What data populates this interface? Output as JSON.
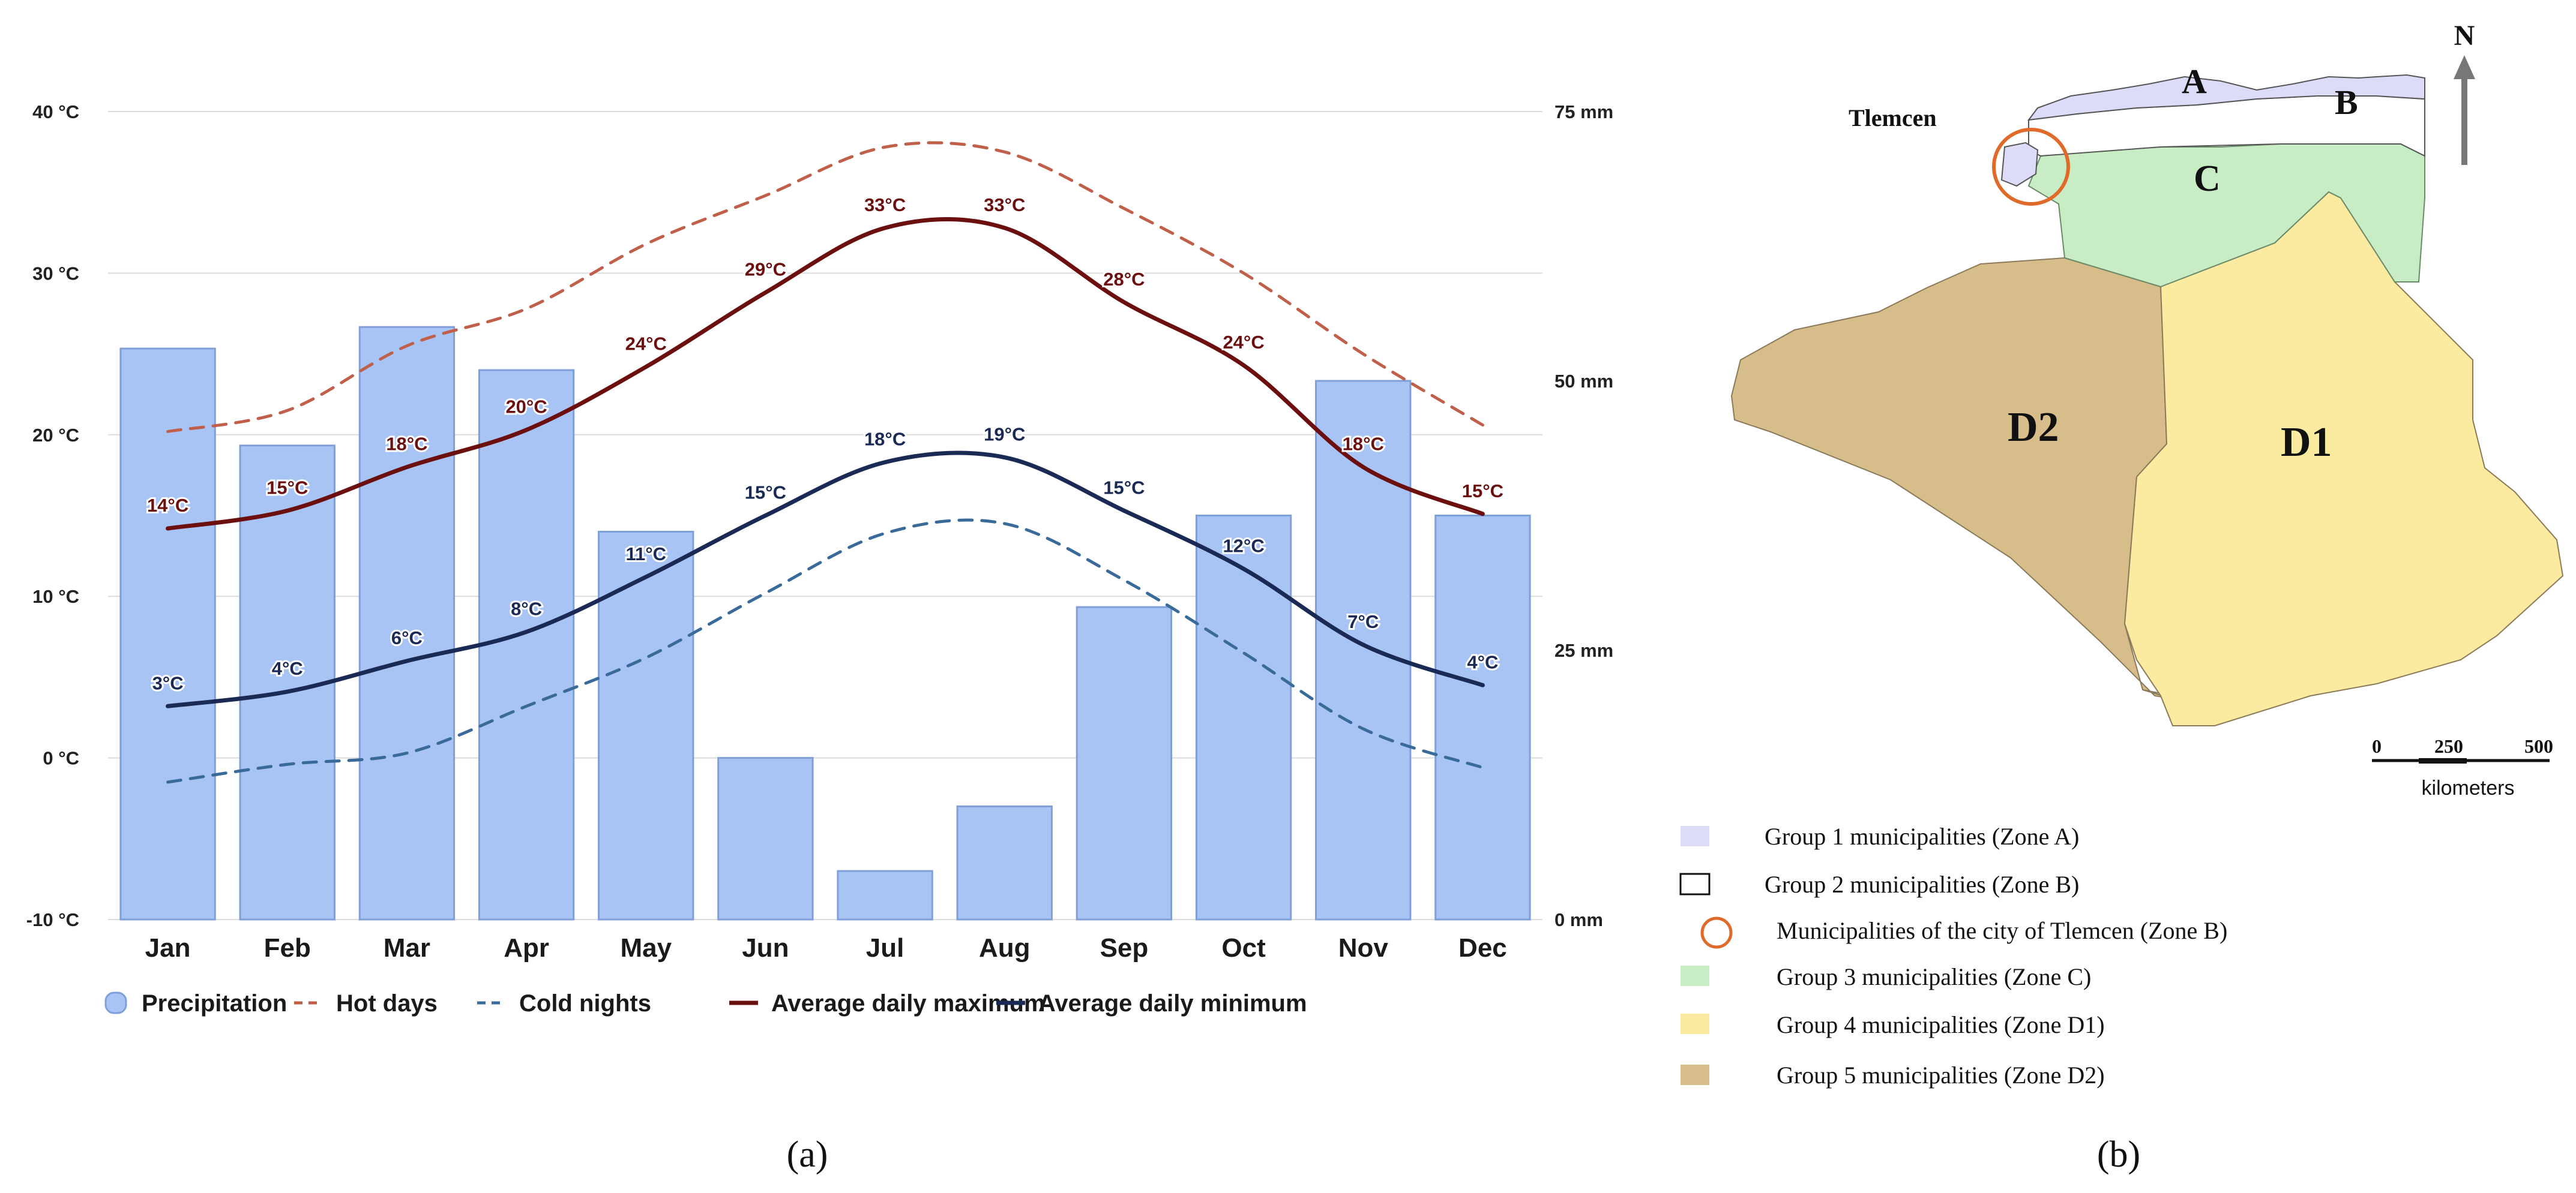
{
  "chart_data": {
    "type": "bar",
    "categories": [
      "Jan",
      "Feb",
      "Mar",
      "Apr",
      "May",
      "Jun",
      "Jul",
      "Aug",
      "Sep",
      "Oct",
      "Nov",
      "Dec"
    ],
    "y_left": {
      "min": -10,
      "max": 40,
      "ticks": [
        -10,
        0,
        10,
        20,
        30,
        40
      ],
      "unit": "°C",
      "tick_labels": [
        "-10 °C",
        "0 °C",
        "10 °C",
        "20 °C",
        "30 °C",
        "40 °C"
      ]
    },
    "y_right": {
      "min": 0,
      "max": 75,
      "ticks": [
        0,
        25,
        50,
        75
      ],
      "unit": "mm",
      "tick_labels": [
        "0 mm",
        "25 mm",
        "50 mm",
        "75 mm"
      ]
    },
    "grid": true,
    "legend_position": "bottom",
    "series": [
      {
        "name": "Precipitation",
        "type": "bar",
        "axis": "right",
        "color": "#a8c4f5",
        "values": [
          53,
          44,
          55,
          51,
          36,
          15,
          4.5,
          10.5,
          29,
          37.5,
          50,
          37.5
        ]
      },
      {
        "name": "Hot days",
        "type": "line",
        "style": "dashed",
        "axis": "left",
        "color": "#c0604a",
        "values": [
          20.2,
          21.5,
          25.5,
          27.8,
          31.8,
          34.8,
          37.8,
          37.5,
          34,
          30,
          25,
          20.6
        ]
      },
      {
        "name": "Cold nights",
        "type": "line",
        "style": "dashed",
        "axis": "left",
        "color": "#3a6a9a",
        "values": [
          -1.5,
          -0.4,
          0.3,
          3.2,
          6.2,
          10.2,
          13.9,
          14.5,
          11,
          6.5,
          1.8,
          -0.6
        ]
      },
      {
        "name": "Average daily maximum",
        "type": "line",
        "axis": "left",
        "color": "#6b0f0f",
        "values": [
          14.2,
          15.3,
          18,
          20.3,
          24.2,
          28.8,
          32.8,
          32.8,
          28.2,
          24.3,
          18,
          15.1
        ],
        "labels": [
          "14°C",
          "15°C",
          "18°C",
          "20°C",
          "24°C",
          "29°C",
          "33°C",
          "33°C",
          "28°C",
          "24°C",
          "18°C",
          "15°C"
        ]
      },
      {
        "name": "Average daily minimum",
        "type": "line",
        "axis": "left",
        "color": "#1a2a55",
        "values": [
          3.2,
          4.1,
          6,
          7.8,
          11.2,
          15,
          18.3,
          18.6,
          15.3,
          11.7,
          7,
          4.5
        ],
        "labels": [
          "3°C",
          "4°C",
          "6°C",
          "8°C",
          "11°C",
          "15°C",
          "18°C",
          "19°C",
          "15°C",
          "12°C",
          "7°C",
          "4°C"
        ]
      }
    ]
  },
  "panels": {
    "a": "(a)",
    "b": "(b)"
  },
  "map": {
    "north": "N",
    "city": "Tlemcen",
    "zones": {
      "A": "A",
      "B": "B",
      "C": "C",
      "D1": "D1",
      "D2": "D2"
    },
    "scale": {
      "labels": [
        "0",
        "250",
        "500"
      ],
      "unit": "kilometers"
    },
    "colors": {
      "zone_a": "#dcdcf8",
      "zone_b": "#ffffff",
      "zone_c": "#c8edc4",
      "zone_d1": "#faeba0",
      "zone_d2": "#d7bd8a",
      "tlemcen_ring": "#e06a2a"
    },
    "legend": [
      {
        "text": "Group 1 municipalities  (Zone A)",
        "swatch": "#dcdcf8"
      },
      {
        "text": "Group 2 municipalities  (Zone B)",
        "swatch": "#ffffff"
      },
      {
        "text": "Municipalities of the city of Tlemcen (Zone B)",
        "swatch": "circle"
      },
      {
        "text": "Group 3 municipalities  (Zone C)",
        "swatch": "#c8edc4"
      },
      {
        "text": "Group 4 municipalities  (Zone D1)",
        "swatch": "#faeba0"
      },
      {
        "text": "Group 5 municipalities  (Zone D2)",
        "swatch": "#d7bd8a"
      }
    ]
  }
}
